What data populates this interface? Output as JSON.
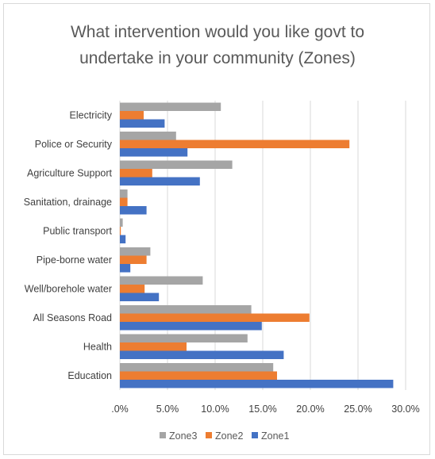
{
  "chart_data": {
    "type": "bar",
    "orientation": "horizontal",
    "title_lines": [
      "What intervention would you like govt to",
      "undertake in your community (Zones)"
    ],
    "categories": [
      "Electricity",
      "Police or Security",
      "Agriculture Support",
      "Sanitation, drainage",
      "Public transport",
      "Pipe-borne water",
      "Well/borehole water",
      "All Seasons Road",
      "Health",
      "Education"
    ],
    "series": [
      {
        "name": "Zone3",
        "color": "#a5a5a5",
        "values": [
          10.6,
          5.9,
          11.8,
          0.8,
          0.3,
          3.2,
          8.7,
          13.8,
          13.4,
          16.1
        ]
      },
      {
        "name": "Zone2",
        "color": "#ed7d31",
        "values": [
          2.5,
          24.1,
          3.4,
          0.8,
          0.1,
          2.8,
          2.6,
          19.9,
          7.0,
          16.5
        ]
      },
      {
        "name": "Zone1",
        "color": "#4472c4",
        "values": [
          4.7,
          7.1,
          8.4,
          2.8,
          0.6,
          1.1,
          4.1,
          14.9,
          17.2,
          28.7
        ]
      }
    ],
    "xlim": [
      0,
      30
    ],
    "xticks": [
      ".0%",
      "5.0%",
      "10.0%",
      "15.0%",
      "20.0%",
      "25.0%",
      "30.0%"
    ],
    "grid": true,
    "legend_position": "bottom"
  }
}
